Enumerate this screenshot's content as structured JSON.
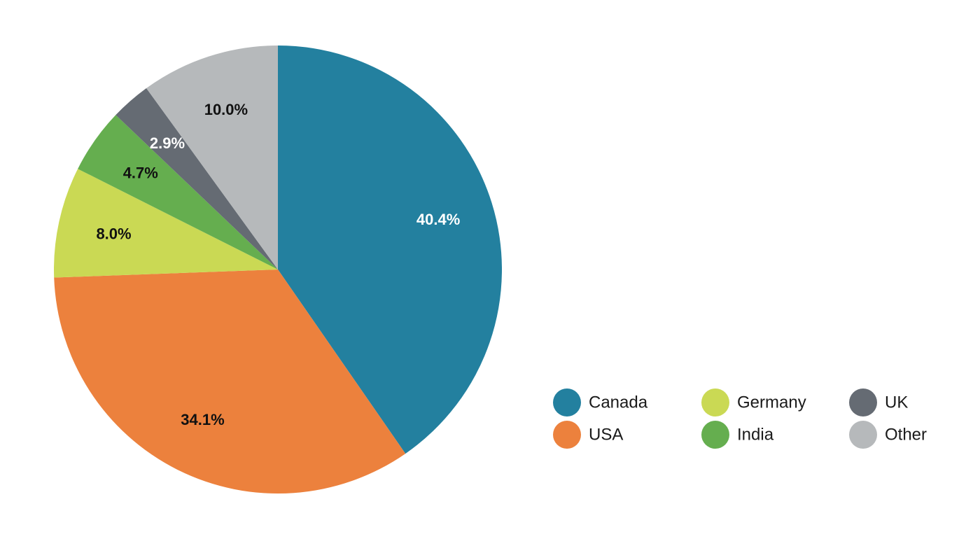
{
  "chart_data": {
    "type": "pie",
    "legend_position": "bottom-right",
    "start_angle_deg": 0,
    "direction": "clockwise",
    "slices": [
      {
        "name": "Canada",
        "value": 40.4,
        "label": "40.4%",
        "color": "#23809f",
        "label_color": "#ffffff"
      },
      {
        "name": "USA",
        "value": 34.1,
        "label": "34.1%",
        "color": "#ec813d",
        "label_color": "#111111"
      },
      {
        "name": "Germany",
        "value": 8.0,
        "label": "8.0%",
        "color": "#cad954",
        "label_color": "#111111"
      },
      {
        "name": "India",
        "value": 4.7,
        "label": "4.7%",
        "color": "#65ae4f",
        "label_color": "#111111"
      },
      {
        "name": "UK",
        "value": 2.9,
        "label": "2.9%",
        "color": "#656b73",
        "label_color": "#ffffff"
      },
      {
        "name": "Other",
        "value": 10.0,
        "label": "10.0%",
        "color": "#b6b9bb",
        "label_color": "#111111"
      }
    ]
  }
}
